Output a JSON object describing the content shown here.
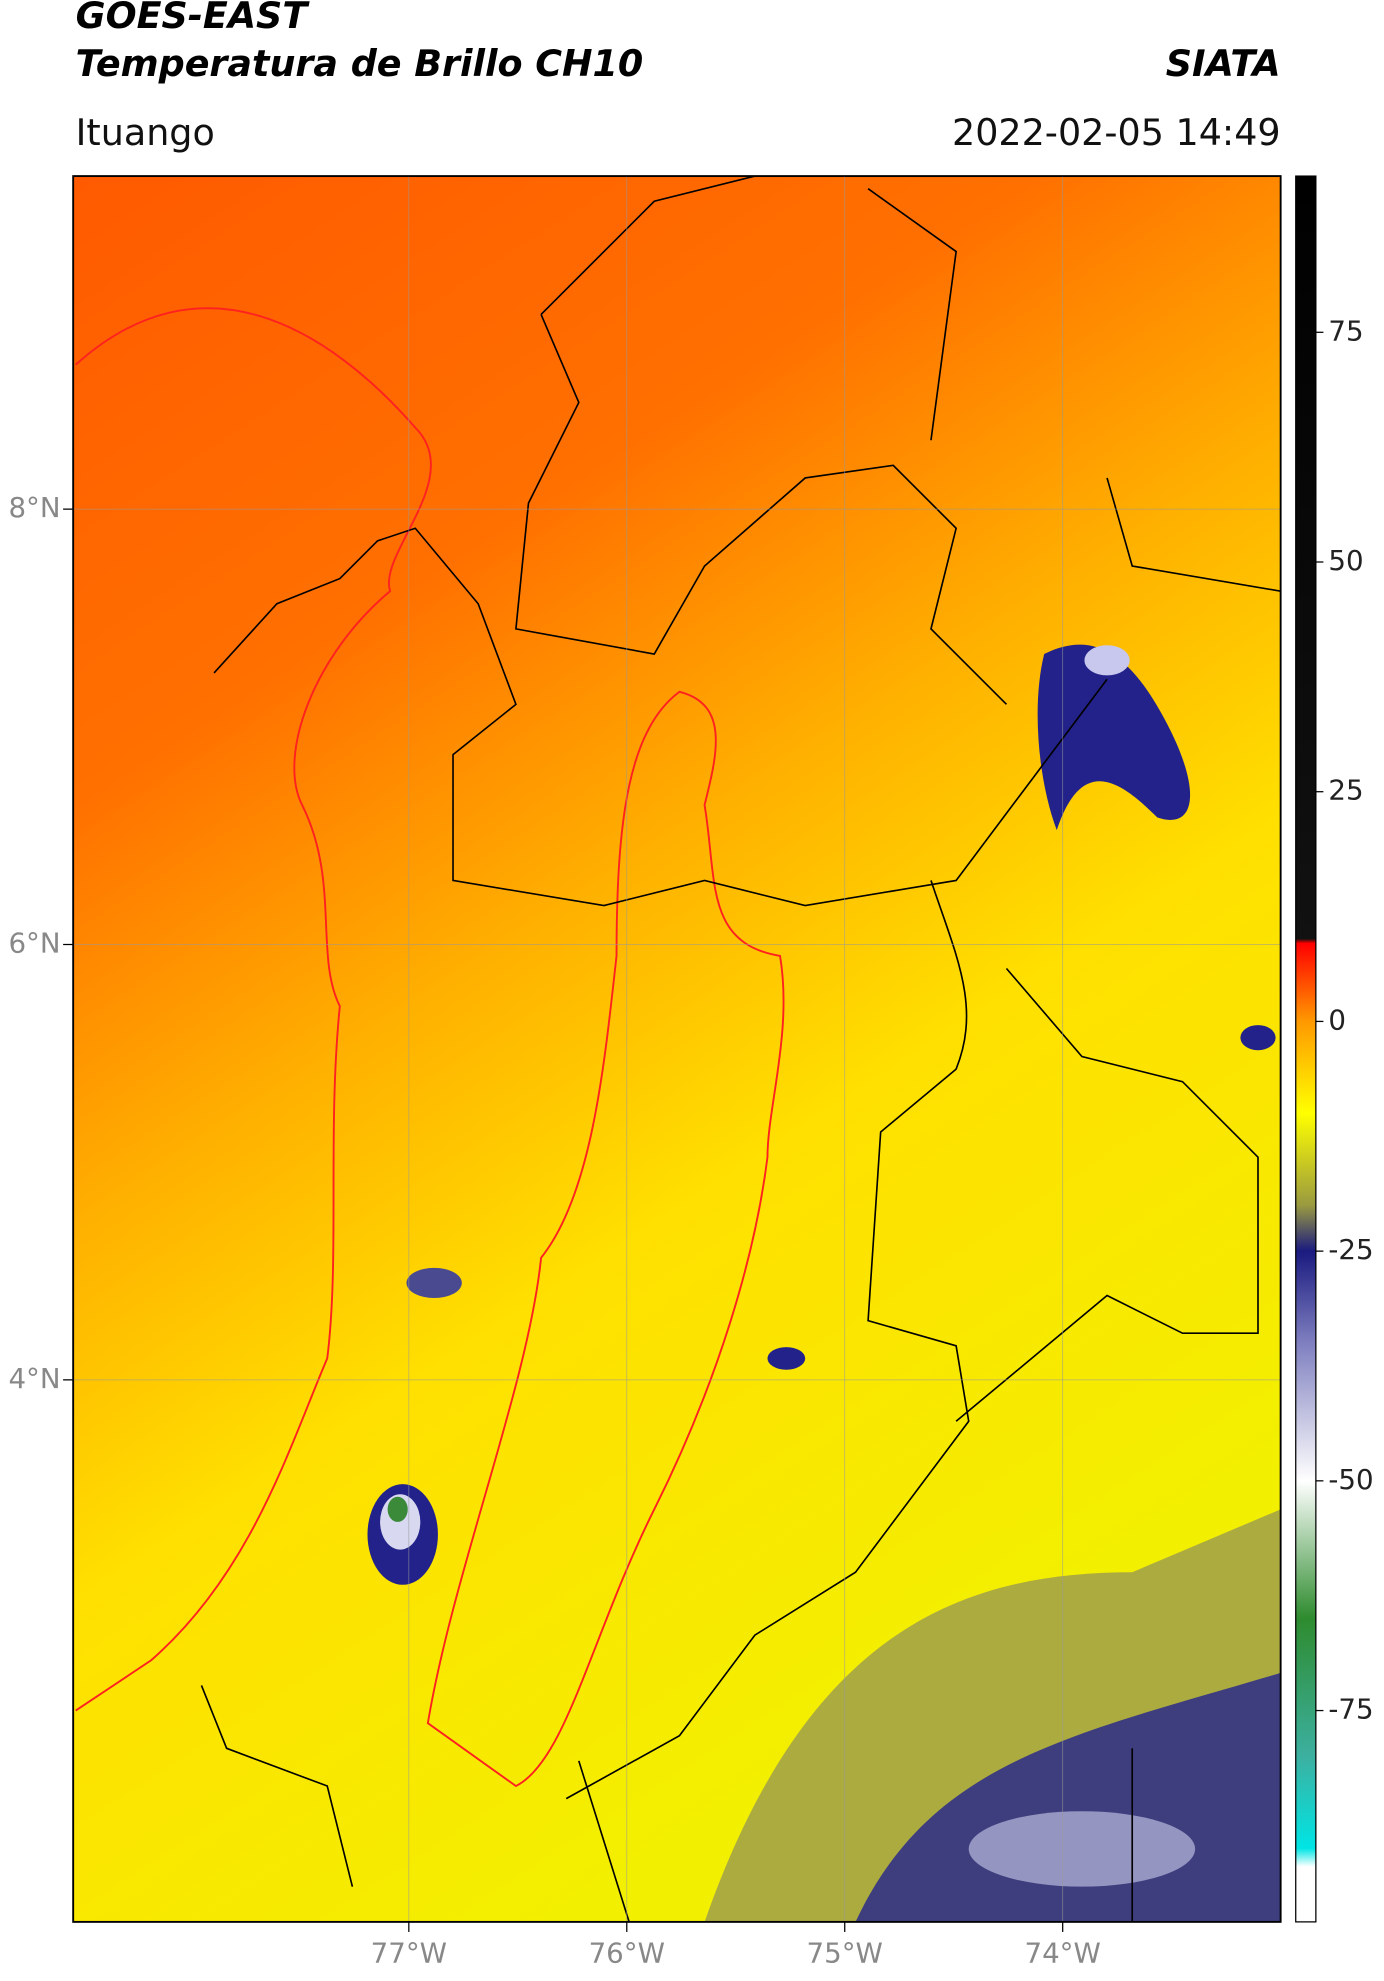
{
  "header": {
    "title": "GOES-EAST",
    "subtitle": "Temperatura de Brillo CH10",
    "source": "SIATA",
    "location": "Ituango",
    "timestamp": "2022-02-05 14:49"
  },
  "map": {
    "xlim": [
      -78.54,
      -73.0
    ],
    "ylim": [
      1.51,
      9.53
    ],
    "xticks": [
      {
        "value": -77,
        "label": "77°W"
      },
      {
        "value": -76,
        "label": "76°W"
      },
      {
        "value": -75,
        "label": "75°W"
      },
      {
        "value": -74,
        "label": "74°W"
      }
    ],
    "yticks": [
      {
        "value": 8,
        "label": "8°N"
      },
      {
        "value": 6,
        "label": "6°N"
      },
      {
        "value": 4,
        "label": "4°N"
      }
    ],
    "grid": true
  },
  "colorbar": {
    "lim": [
      -98,
      92
    ],
    "ticks": [
      75,
      50,
      25,
      0,
      -25,
      -50,
      -75
    ],
    "stops": [
      {
        "value": 92,
        "color": "#000000"
      },
      {
        "value": 9,
        "color": "#111111"
      },
      {
        "value": 8.5,
        "color": "#ff0000"
      },
      {
        "value": 0,
        "color": "#ff9900"
      },
      {
        "value": -10,
        "color": "#ffff00"
      },
      {
        "value": -20,
        "color": "#9a9a40"
      },
      {
        "value": -25,
        "color": "#1a1a80"
      },
      {
        "value": -35,
        "color": "#7f7fc0"
      },
      {
        "value": -50,
        "color": "#ffffff"
      },
      {
        "value": -65,
        "color": "#2e8b2e"
      },
      {
        "value": -80,
        "color": "#3cb0a0"
      },
      {
        "value": -90,
        "color": "#00e5e5"
      },
      {
        "value": -92,
        "color": "#ffffff"
      }
    ]
  }
}
